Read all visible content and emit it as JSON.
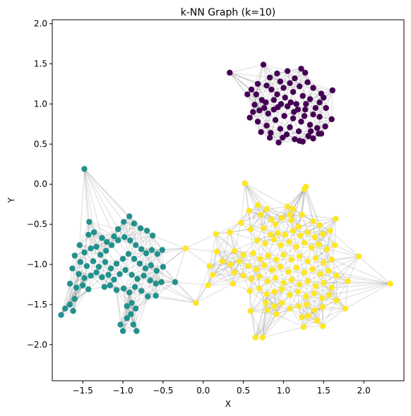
{
  "chart_data": {
    "type": "scatter",
    "title": "k-NN Graph (k=10)",
    "xlabel": "X",
    "ylabel": "Y",
    "xlim": [
      -1.88,
      2.5
    ],
    "ylim": [
      -2.45,
      2.05
    ],
    "xticks": [
      -1.5,
      -1.0,
      -0.5,
      0.0,
      0.5,
      1.0,
      1.5,
      2.0
    ],
    "xtick_labels": [
      "−1.5",
      "−1.0",
      "−0.5",
      "0.0",
      "0.5",
      "1.0",
      "1.5",
      "2.0"
    ],
    "yticks": [
      2.0,
      1.5,
      1.0,
      0.5,
      0.0,
      -0.5,
      -1.0,
      -1.5,
      -2.0
    ],
    "ytick_labels": [
      "2.0",
      "1.5",
      "1.0",
      "0.5",
      "0.0",
      "−0.5",
      "−1.0",
      "−1.5",
      "−2.0"
    ],
    "grid": false,
    "k": 10,
    "edge_color": "#808080",
    "series": [
      {
        "color": "#440154",
        "points": [
          [
            0.33,
            1.39
          ],
          [
            0.75,
            1.49
          ],
          [
            0.83,
            1.33
          ],
          [
            0.92,
            1.38
          ],
          [
            1.05,
            1.41
          ],
          [
            1.22,
            1.44
          ],
          [
            1.27,
            1.39
          ],
          [
            1.14,
            1.32
          ],
          [
            0.96,
            1.28
          ],
          [
            0.79,
            1.23
          ],
          [
            0.68,
            1.25
          ],
          [
            0.6,
            1.18
          ],
          [
            0.66,
            1.12
          ],
          [
            0.73,
            1.05
          ],
          [
            0.85,
            1.18
          ],
          [
            0.92,
            1.12
          ],
          [
            1.0,
            1.2
          ],
          [
            1.08,
            1.26
          ],
          [
            1.2,
            1.22
          ],
          [
            1.3,
            1.27
          ],
          [
            1.37,
            1.2
          ],
          [
            1.47,
            1.13
          ],
          [
            1.61,
            1.17
          ],
          [
            0.55,
            1.12
          ],
          [
            0.64,
            0.99
          ],
          [
            0.78,
            1.02
          ],
          [
            0.88,
            1.05
          ],
          [
            1.02,
            1.08
          ],
          [
            1.12,
            1.15
          ],
          [
            1.24,
            1.1
          ],
          [
            1.33,
            1.06
          ],
          [
            1.45,
            1.02
          ],
          [
            1.53,
            0.95
          ],
          [
            0.7,
            0.92
          ],
          [
            0.81,
            0.88
          ],
          [
            0.93,
            0.96
          ],
          [
            1.05,
            0.97
          ],
          [
            1.16,
            1.0
          ],
          [
            1.27,
            0.93
          ],
          [
            1.37,
            0.87
          ],
          [
            1.45,
            0.84
          ],
          [
            0.58,
            0.83
          ],
          [
            0.68,
            0.78
          ],
          [
            0.79,
            0.73
          ],
          [
            0.9,
            0.8
          ],
          [
            1.01,
            0.85
          ],
          [
            1.12,
            0.82
          ],
          [
            1.22,
            0.78
          ],
          [
            1.33,
            0.74
          ],
          [
            1.42,
            0.7
          ],
          [
            0.72,
            0.65
          ],
          [
            0.84,
            0.64
          ],
          [
            0.96,
            0.69
          ],
          [
            1.08,
            0.71
          ],
          [
            1.19,
            0.66
          ],
          [
            1.31,
            0.6
          ],
          [
            1.44,
            0.63
          ],
          [
            1.52,
            0.72
          ],
          [
            1.6,
            0.81
          ],
          [
            0.83,
            0.58
          ],
          [
            0.99,
            0.58
          ],
          [
            1.04,
            0.62
          ],
          [
            1.14,
            0.56
          ],
          [
            1.24,
            0.53
          ],
          [
            1.37,
            0.57
          ],
          [
            1.47,
            0.63
          ],
          [
            0.94,
            0.52
          ],
          [
            1.2,
            0.54
          ],
          [
            1.34,
            0.66
          ],
          [
            1.13,
            0.9
          ],
          [
            0.88,
            0.93
          ],
          [
            1.26,
            0.85
          ],
          [
            1.4,
            0.95
          ],
          [
            1.5,
            1.08
          ],
          [
            0.76,
            0.95
          ],
          [
            0.97,
            1.0
          ],
          [
            0.62,
            0.9
          ],
          [
            1.09,
            1.02
          ],
          [
            1.18,
            0.93
          ],
          [
            1.28,
            1.0
          ]
        ]
      },
      {
        "color": "#21918c",
        "points": [
          [
            -1.48,
            0.19
          ],
          [
            -1.42,
            -0.47
          ],
          [
            -1.36,
            -0.6
          ],
          [
            -1.43,
            -0.63
          ],
          [
            -1.26,
            -0.67
          ],
          [
            -1.2,
            -0.72
          ],
          [
            -1.11,
            -0.65
          ],
          [
            -1.06,
            -0.56
          ],
          [
            -0.99,
            -0.47
          ],
          [
            -0.92,
            -0.4
          ],
          [
            -0.86,
            -0.49
          ],
          [
            -0.78,
            -0.55
          ],
          [
            -0.7,
            -0.58
          ],
          [
            -0.63,
            -0.64
          ],
          [
            -1.54,
            -0.76
          ],
          [
            -1.48,
            -0.85
          ],
          [
            -1.4,
            -0.8
          ],
          [
            -1.33,
            -0.78
          ],
          [
            -1.28,
            -0.88
          ],
          [
            -1.21,
            -0.83
          ],
          [
            -1.14,
            -0.76
          ],
          [
            -1.06,
            -0.7
          ],
          [
            -0.98,
            -0.66
          ],
          [
            -0.91,
            -0.7
          ],
          [
            -0.84,
            -0.76
          ],
          [
            -0.77,
            -0.81
          ],
          [
            -0.71,
            -0.86
          ],
          [
            -0.64,
            -0.82
          ],
          [
            -0.57,
            -0.87
          ],
          [
            -0.51,
            -0.82
          ],
          [
            -1.6,
            -0.89
          ],
          [
            -1.53,
            -0.97
          ],
          [
            -1.45,
            -1.02
          ],
          [
            -1.37,
            -0.96
          ],
          [
            -1.3,
            -1.03
          ],
          [
            -1.22,
            -0.97
          ],
          [
            -1.15,
            -1.05
          ],
          [
            -1.08,
            -0.99
          ],
          [
            -1.0,
            -0.93
          ],
          [
            -0.93,
            -0.87
          ],
          [
            -0.86,
            -0.93
          ],
          [
            -0.79,
            -0.99
          ],
          [
            -0.72,
            -1.05
          ],
          [
            -0.65,
            -1.01
          ],
          [
            -0.58,
            -1.08
          ],
          [
            -0.5,
            -1.03
          ],
          [
            -1.63,
            -1.05
          ],
          [
            -1.55,
            -1.12
          ],
          [
            -1.48,
            -1.17
          ],
          [
            -1.4,
            -1.14
          ],
          [
            -1.33,
            -1.1
          ],
          [
            -1.26,
            -1.16
          ],
          [
            -1.18,
            -1.13
          ],
          [
            -1.11,
            -1.19
          ],
          [
            -1.04,
            -1.12
          ],
          [
            -0.97,
            -1.07
          ],
          [
            -0.89,
            -1.13
          ],
          [
            -0.82,
            -1.18
          ],
          [
            -0.74,
            -1.14
          ],
          [
            -0.66,
            -1.2
          ],
          [
            -0.59,
            -1.24
          ],
          [
            -0.52,
            -1.22
          ],
          [
            -0.35,
            -1.22
          ],
          [
            -1.66,
            -1.24
          ],
          [
            -1.58,
            -1.29
          ],
          [
            -1.5,
            -1.26
          ],
          [
            -1.43,
            -1.31
          ],
          [
            -1.23,
            -1.28
          ],
          [
            -1.16,
            -1.26
          ],
          [
            -1.08,
            -1.32
          ],
          [
            -0.99,
            -1.3
          ],
          [
            -0.92,
            -1.35
          ],
          [
            -0.85,
            -1.28
          ],
          [
            -0.77,
            -1.33
          ],
          [
            -0.69,
            -1.4
          ],
          [
            -0.59,
            -1.39
          ],
          [
            -1.72,
            -1.55
          ],
          [
            -1.66,
            -1.5
          ],
          [
            -1.6,
            -1.43
          ],
          [
            -1.77,
            -1.63
          ],
          [
            -1.62,
            -1.58
          ],
          [
            -0.95,
            -1.52
          ],
          [
            -0.89,
            -1.48
          ],
          [
            -0.84,
            -1.55
          ],
          [
            -1.03,
            -1.75
          ],
          [
            -0.95,
            -1.67
          ],
          [
            -0.87,
            -1.75
          ],
          [
            -0.83,
            -1.83
          ],
          [
            -1.0,
            -1.83
          ],
          [
            -0.9,
            -1.62
          ]
        ]
      },
      {
        "color": "#fde725",
        "points": [
          [
            0.52,
            0.01
          ],
          [
            1.28,
            -0.03
          ],
          [
            1.26,
            -0.06
          ],
          [
            0.68,
            -0.26
          ],
          [
            0.79,
            -0.31
          ],
          [
            0.57,
            -0.33
          ],
          [
            1.05,
            -0.28
          ],
          [
            1.12,
            -0.31
          ],
          [
            1.23,
            -0.38
          ],
          [
            0.72,
            -0.38
          ],
          [
            0.85,
            -0.44
          ],
          [
            0.9,
            -0.5
          ],
          [
            0.98,
            -0.42
          ],
          [
            1.08,
            -0.38
          ],
          [
            1.1,
            -0.45
          ],
          [
            1.19,
            -0.53
          ],
          [
            1.37,
            -0.46
          ],
          [
            1.45,
            -0.51
          ],
          [
            1.65,
            -0.43
          ],
          [
            0.47,
            -0.48
          ],
          [
            0.59,
            -0.56
          ],
          [
            0.75,
            -0.55
          ],
          [
            0.84,
            -0.63
          ],
          [
            0.93,
            -0.61
          ],
          [
            1.02,
            -0.63
          ],
          [
            1.12,
            -0.58
          ],
          [
            1.21,
            -0.64
          ],
          [
            1.3,
            -0.6
          ],
          [
            1.39,
            -0.66
          ],
          [
            1.49,
            -0.62
          ],
          [
            1.58,
            -0.58
          ],
          [
            0.16,
            -0.62
          ],
          [
            0.33,
            -0.6
          ],
          [
            0.67,
            -0.7
          ],
          [
            0.77,
            -0.74
          ],
          [
            0.88,
            -0.69
          ],
          [
            0.97,
            -0.76
          ],
          [
            1.07,
            -0.72
          ],
          [
            1.16,
            -0.78
          ],
          [
            1.26,
            -0.73
          ],
          [
            1.35,
            -0.79
          ],
          [
            1.44,
            -0.75
          ],
          [
            1.54,
            -0.81
          ],
          [
            1.64,
            -0.76
          ],
          [
            -0.22,
            -0.8
          ],
          [
            0.17,
            -0.84
          ],
          [
            0.39,
            -0.83
          ],
          [
            0.5,
            -0.88
          ],
          [
            0.62,
            -0.86
          ],
          [
            0.71,
            -0.93
          ],
          [
            0.81,
            -0.89
          ],
          [
            0.91,
            -0.94
          ],
          [
            1.0,
            -0.88
          ],
          [
            1.1,
            -0.94
          ],
          [
            1.2,
            -0.9
          ],
          [
            1.3,
            -0.96
          ],
          [
            1.4,
            -0.92
          ],
          [
            1.5,
            -0.98
          ],
          [
            1.6,
            -0.94
          ],
          [
            1.94,
            -0.9
          ],
          [
            0.24,
            -0.96
          ],
          [
            0.34,
            -1.0
          ],
          [
            0.45,
            -0.96
          ],
          [
            0.56,
            -1.02
          ],
          [
            0.66,
            -1.06
          ],
          [
            0.76,
            -1.01
          ],
          [
            0.86,
            -1.07
          ],
          [
            0.96,
            -1.03
          ],
          [
            1.06,
            -1.09
          ],
          [
            1.16,
            -1.04
          ],
          [
            1.26,
            -1.1
          ],
          [
            1.36,
            -1.06
          ],
          [
            1.46,
            -1.12
          ],
          [
            1.56,
            -1.08
          ],
          [
            1.66,
            -1.14
          ],
          [
            0.08,
            -1.02
          ],
          [
            0.12,
            -1.13
          ],
          [
            0.39,
            -1.1
          ],
          [
            0.5,
            -1.14
          ],
          [
            0.6,
            -1.18
          ],
          [
            0.7,
            -1.15
          ],
          [
            0.8,
            -1.21
          ],
          [
            0.9,
            -1.17
          ],
          [
            1.0,
            -1.23
          ],
          [
            1.1,
            -1.19
          ],
          [
            1.2,
            -1.25
          ],
          [
            1.3,
            -1.21
          ],
          [
            1.4,
            -1.27
          ],
          [
            1.5,
            -1.23
          ],
          [
            1.6,
            -1.29
          ],
          [
            1.8,
            -1.21
          ],
          [
            2.33,
            -1.24
          ],
          [
            -0.09,
            -1.48
          ],
          [
            0.06,
            -1.26
          ],
          [
            0.37,
            -1.24
          ],
          [
            0.58,
            -1.33
          ],
          [
            0.7,
            -1.3
          ],
          [
            0.79,
            -1.37
          ],
          [
            0.89,
            -1.34
          ],
          [
            0.98,
            -1.31
          ],
          [
            1.08,
            -1.38
          ],
          [
            1.18,
            -1.34
          ],
          [
            1.28,
            -1.4
          ],
          [
            1.38,
            -1.36
          ],
          [
            1.48,
            -1.42
          ],
          [
            1.57,
            -1.38
          ],
          [
            1.66,
            -1.45
          ],
          [
            0.78,
            -1.48
          ],
          [
            0.89,
            -1.52
          ],
          [
            0.98,
            -1.48
          ],
          [
            1.08,
            -1.55
          ],
          [
            1.19,
            -1.52
          ],
          [
            1.29,
            -1.5
          ],
          [
            1.39,
            -1.57
          ],
          [
            1.49,
            -1.53
          ],
          [
            1.77,
            -1.55
          ],
          [
            0.59,
            -1.58
          ],
          [
            0.8,
            -1.57
          ],
          [
            1.23,
            -1.66
          ],
          [
            1.31,
            -1.64
          ],
          [
            1.42,
            -1.7
          ],
          [
            1.25,
            -1.78
          ],
          [
            1.49,
            -1.77
          ],
          [
            0.65,
            -1.91
          ],
          [
            0.74,
            -1.91
          ],
          [
            0.91,
            -1.62
          ]
        ]
      }
    ]
  }
}
